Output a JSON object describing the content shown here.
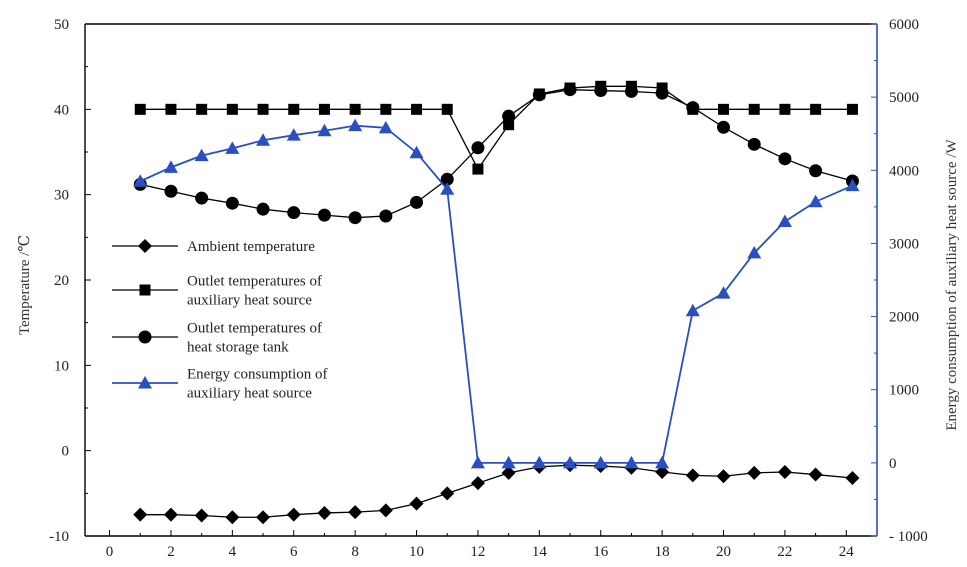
{
  "chart_data": {
    "type": "line",
    "title": "",
    "xlabel": "",
    "ylabel_left": "Temperature /℃",
    "ylabel_right": "Energy consumption of  auxiliary heat source /W",
    "xlim": [
      -0.8,
      25
    ],
    "ylim_left": [
      -10,
      50
    ],
    "ylim_right": [
      -1000,
      6000
    ],
    "x_ticks": [
      0,
      2,
      4,
      6,
      8,
      10,
      12,
      14,
      16,
      18,
      20,
      22,
      24
    ],
    "y_ticks_left": [
      -10,
      0,
      10,
      20,
      30,
      40,
      50
    ],
    "y_ticks_right": [
      -1000,
      0,
      1000,
      2000,
      3000,
      4000,
      5000,
      6000
    ],
    "grid": false,
    "legend_position": "center-left",
    "series": [
      {
        "name": "Ambient temperature",
        "axis": "left",
        "marker": "diamond",
        "color": "#000000",
        "x": [
          1,
          2,
          3,
          4,
          5,
          6,
          7,
          8,
          9,
          10,
          11,
          12,
          13,
          14,
          15,
          16,
          17,
          18,
          19,
          20,
          21,
          22,
          23,
          24.2
        ],
        "y": [
          -7.5,
          -7.5,
          -7.6,
          -7.8,
          -7.8,
          -7.5,
          -7.3,
          -7.2,
          -7.0,
          -6.2,
          -5.0,
          -3.8,
          -2.6,
          -1.9,
          -1.7,
          -1.8,
          -2.0,
          -2.5,
          -2.9,
          -3.0,
          -2.6,
          -2.5,
          -2.8,
          -3.2
        ]
      },
      {
        "name": "Outlet temperatures of auxiliary heat source",
        "legend_lines": [
          "Outlet temperatures of",
          "auxiliary heat source"
        ],
        "axis": "left",
        "marker": "square",
        "color": "#000000",
        "x": [
          1,
          2,
          3,
          4,
          5,
          6,
          7,
          8,
          9,
          10,
          11,
          12,
          13,
          14,
          15,
          16,
          17,
          18,
          19,
          20,
          21,
          22,
          23,
          24.2
        ],
        "y": [
          40,
          40,
          40,
          40,
          40,
          40,
          40,
          40,
          40,
          40,
          40,
          33.0,
          38.2,
          41.8,
          42.5,
          42.7,
          42.7,
          42.5,
          40,
          40,
          40,
          40,
          40,
          40
        ]
      },
      {
        "name": "Outlet temperatures of heat storage tank",
        "legend_lines": [
          "Outlet temperatures of",
          "heat storage tank"
        ],
        "axis": "left",
        "marker": "circle",
        "color": "#000000",
        "x": [
          1,
          2,
          3,
          4,
          5,
          6,
          7,
          8,
          9,
          10,
          11,
          12,
          13,
          14,
          15,
          16,
          17,
          18,
          19,
          20,
          21,
          22,
          23,
          24.2
        ],
        "y": [
          31.2,
          30.4,
          29.6,
          29.0,
          28.3,
          27.9,
          27.6,
          27.3,
          27.5,
          29.1,
          31.8,
          35.5,
          39.2,
          41.7,
          42.3,
          42.2,
          42.1,
          41.9,
          40.2,
          37.9,
          35.9,
          34.2,
          32.8,
          31.6
        ]
      },
      {
        "name": "Energy consumption of auxiliary heat source",
        "legend_lines": [
          "Energy consumption of",
          "auxiliary heat source"
        ],
        "axis": "right",
        "marker": "triangle",
        "color": "#2a4fbf",
        "x": [
          1,
          2,
          3,
          4,
          5,
          6,
          7,
          8,
          9,
          10,
          11,
          12,
          13,
          14,
          15,
          16,
          17,
          18,
          19,
          20,
          21,
          22,
          23,
          24.2
        ],
        "y": [
          3850,
          4040,
          4200,
          4300,
          4410,
          4480,
          4540,
          4610,
          4580,
          4240,
          3740,
          0,
          0,
          0,
          0,
          0,
          0,
          0,
          2080,
          2320,
          2870,
          3300,
          3570,
          3790
        ]
      }
    ]
  }
}
